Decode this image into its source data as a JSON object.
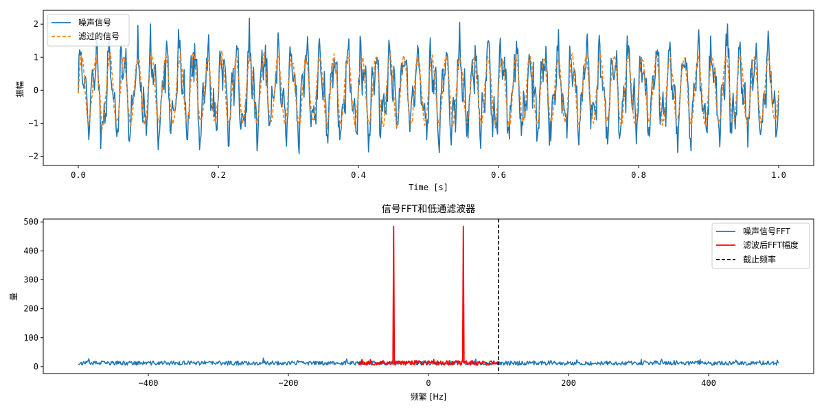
{
  "chart_data": [
    {
      "type": "line",
      "title": "",
      "xlabel": "Time [s]",
      "ylabel": "振幅",
      "xlim": [
        -0.05,
        1.05
      ],
      "ylim": [
        -2.28,
        2.42
      ],
      "xticks": [
        0.0,
        0.2,
        0.4,
        0.6,
        0.8,
        1.0
      ],
      "xtick_labels": [
        "0.0",
        "0.2",
        "0.4",
        "0.6",
        "0.8",
        "1.0"
      ],
      "yticks": [
        -2,
        -1,
        0,
        1,
        2
      ],
      "ytick_labels": [
        "−2",
        "−1",
        "0",
        "1",
        "2"
      ],
      "grid": false,
      "legend_position": "top-left",
      "series": [
        {
          "name": "噪声信号",
          "color": "#1f77b4",
          "style": "solid",
          "x_range": [
            0,
            1
          ],
          "points": 1000,
          "components": [
            {
              "freq_hz": 50,
              "amp": 1.0
            },
            {
              "freq_hz": 120,
              "amp": 0.5
            }
          ],
          "noise_std": 0.3,
          "noise_seed": 11
        },
        {
          "name": "滤过的信号",
          "color": "#ff7f0e",
          "style": "dashed",
          "x_range": [
            0,
            1
          ],
          "points": 1000,
          "components": [
            {
              "freq_hz": 50,
              "amp": 1.0
            }
          ],
          "noise_std": 0.08,
          "noise_seed": 23
        }
      ]
    },
    {
      "type": "line",
      "title": "信号FFT和低通滤波器",
      "xlabel": "频繁 [Hz]",
      "ylabel": "量",
      "xlim": [
        -550,
        550
      ],
      "ylim": [
        -24,
        510
      ],
      "xticks": [
        -400,
        -200,
        0,
        200,
        400
      ],
      "xtick_labels": [
        "−400",
        "−200",
        "0",
        "200",
        "400"
      ],
      "yticks": [
        0,
        100,
        200,
        300,
        400,
        500
      ],
      "ytick_labels": [
        "0",
        "100",
        "200",
        "300",
        "400",
        "500"
      ],
      "grid": false,
      "legend_position": "top-right",
      "series": [
        {
          "name": "噪声信号FFT",
          "color": "#1f77b4",
          "style": "solid",
          "x_range": [
            -500,
            500
          ],
          "points": 1000,
          "baseline_mean": 12,
          "baseline_jitter": 9,
          "noise_seed": 37
        },
        {
          "name": "滤波后FFT幅度",
          "color": "#ff0000",
          "style": "solid",
          "x_range": [
            -100,
            100
          ],
          "points": 200,
          "baseline_mean": 13,
          "baseline_jitter": 10,
          "peaks": [
            {
              "x": -50,
              "y": 485
            },
            {
              "x": 50,
              "y": 485
            }
          ],
          "noise_seed": 53
        },
        {
          "name": "截止频率",
          "color": "#000000",
          "style": "dashed",
          "vline_x": 100
        }
      ]
    }
  ]
}
